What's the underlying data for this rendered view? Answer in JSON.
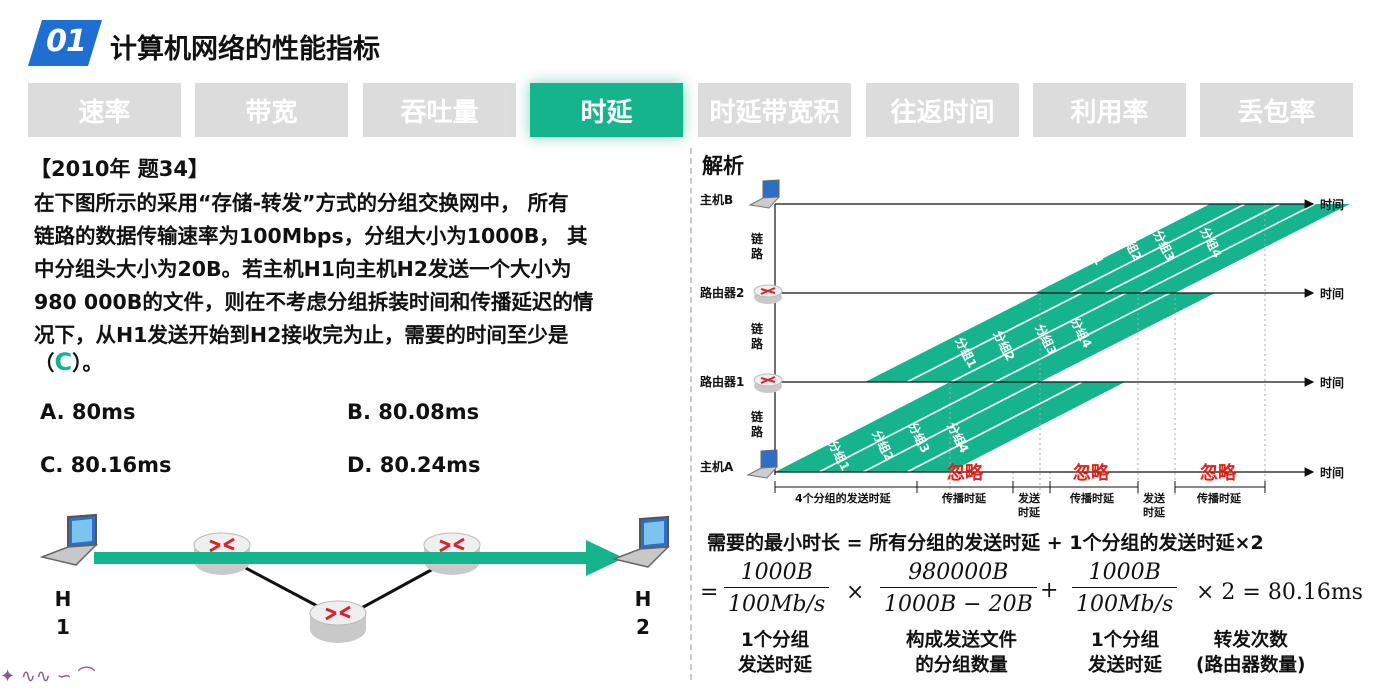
{
  "header": {
    "badge_number": "01",
    "title": "计算机网络的性能指标"
  },
  "tabs": [
    {
      "label": "速率",
      "active": false
    },
    {
      "label": "带宽",
      "active": false
    },
    {
      "label": "吞吐量",
      "active": false
    },
    {
      "label": "时延",
      "active": true
    },
    {
      "label": "时延带宽积",
      "active": false
    },
    {
      "label": "往返时间",
      "active": false
    },
    {
      "label": "利用率",
      "active": false
    },
    {
      "label": "丢包率",
      "active": false
    }
  ],
  "question": {
    "source": "【2010年 题34】",
    "lines": [
      "在下图所示的采用“存储-转发”方式的分组交换网中， 所有",
      "链路的数据传输速率为100Mbps，分组大小为1000B， 其",
      "中分组头大小为20B。若主机H1向主机H2发送一个大小为",
      "980 000B的文件，则在不考虑分组拆装时间和传播延迟的情",
      "况下，从H1发送开始到H2接收完为止，需要的时间至少是"
    ],
    "answer_open": "（",
    "answer": "C",
    "answer_close": "）。",
    "options": [
      {
        "label": "A. 80ms"
      },
      {
        "label": "B. 80.08ms"
      },
      {
        "label": "C. 80.16ms"
      },
      {
        "label": "D. 80.24ms"
      }
    ]
  },
  "network": {
    "h1": {
      "line1": "H",
      "line2": "1"
    },
    "h2": {
      "line1": "H",
      "line2": "2"
    }
  },
  "analysis": {
    "title": "解析",
    "rows": [
      {
        "label": "主机B"
      },
      {
        "label": "路由器2"
      },
      {
        "label": "路由器1"
      },
      {
        "label": "主机A"
      }
    ],
    "time_label": "时间",
    "link_label": "链路",
    "packets": [
      "分组1",
      "分组2",
      "分组3",
      "分组4"
    ],
    "ignore_label": "忽略",
    "spans": {
      "send4": "4个分组的发送时延",
      "prop": "传播时延",
      "send1_l1": "发送",
      "send1_l2": "时延"
    },
    "formula": {
      "title": "需要的最小时长 = 所有分组的发送时延 + 1个分组的发送时延×2",
      "eq": "=",
      "f1_num": "1000B",
      "f1_den": "100Mb/s",
      "times": "×",
      "f2_num": "980000B",
      "f2_den": "1000B − 20B",
      "plus": "+",
      "f3_num": "1000B",
      "f3_den": "100Mb/s",
      "tail": "× 2 = 80.16ms",
      "cap1_l1": "1个分组",
      "cap1_l2": "发送时延",
      "cap2_l1": "构成发送文件",
      "cap2_l2": "的分组数量",
      "cap3_l1": "1个分组",
      "cap3_l2": "发送时延",
      "cap4_l1": "转发次数",
      "cap4_l2": "(路由器数量)"
    }
  },
  "colors": {
    "accent": "#16b48d",
    "badge_blue": "#1f6fd0",
    "ignore_red": "#e0231d",
    "tab_inactive": "#dcdcdc"
  }
}
